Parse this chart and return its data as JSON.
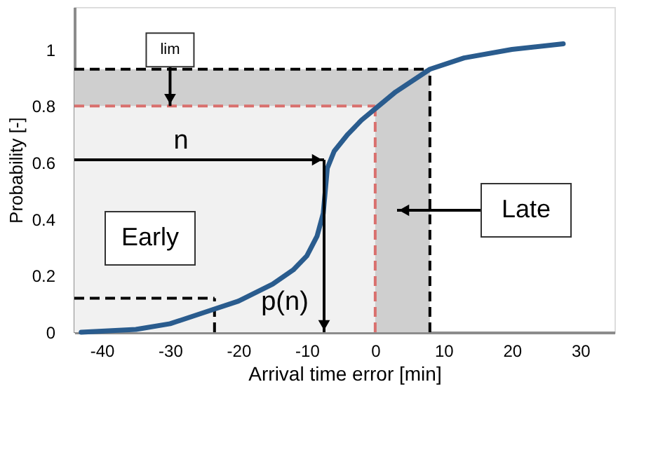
{
  "chart_data": {
    "type": "line",
    "xlabel": "Arrival time error [min]",
    "ylabel": "Probability [-]",
    "xlim": [
      -44,
      35
    ],
    "ylim": [
      0,
      1.15
    ],
    "xticks": [
      {
        "value": -40,
        "label": "-40"
      },
      {
        "value": -30,
        "label": "-30"
      },
      {
        "value": -20,
        "label": "-20"
      },
      {
        "value": -10,
        "label": "-10"
      },
      0,
      10,
      20,
      30
    ],
    "yticks": [
      0,
      0.2,
      0.4,
      0.6,
      0.8,
      1
    ],
    "grid": false,
    "series": [
      {
        "color": "#2a5c8e",
        "x": [
          -43,
          -35,
          -30,
          -25,
          -20,
          -15,
          -12,
          -10,
          -8.5,
          -7.6,
          -7.3,
          -7,
          -6,
          -4,
          -2,
          0,
          3,
          8,
          13,
          20,
          27.5
        ],
        "values": [
          0,
          0.01,
          0.03,
          0.07,
          0.11,
          0.17,
          0.22,
          0.27,
          0.34,
          0.42,
          0.5,
          0.58,
          0.64,
          0.7,
          0.75,
          0.79,
          0.85,
          0.93,
          0.97,
          1.0,
          1.02
        ]
      }
    ],
    "bands": [
      {
        "axis": "x",
        "from": -44,
        "to": 0,
        "color": "#f1f1f1"
      },
      {
        "axis": "x",
        "from": 0,
        "to": 8,
        "color": "#cfcfcf"
      },
      {
        "axis": "y",
        "from": 0.8,
        "to": 0.93,
        "color": "#cfcfcf"
      }
    ],
    "ref_lines": [
      {
        "axis": "y",
        "value": 0.93,
        "color": "#000000",
        "line_style": "dashed"
      },
      {
        "axis": "x",
        "value": 8,
        "color": "#000000",
        "line_style": "dashed"
      },
      {
        "axis": "y",
        "value": 0.8,
        "color": "#d9706e",
        "line_style": "dashed"
      },
      {
        "axis": "x",
        "value": 0,
        "color": "#d9706e",
        "line_style": "dashed"
      },
      {
        "axis": "y",
        "value": 0.12,
        "color": "#000000",
        "line_style": "dashed"
      },
      {
        "axis": "x",
        "value": -23.5,
        "color": "#000000",
        "line_style": "dashed"
      }
    ],
    "annotations": [
      {
        "text": "lim",
        "x": -30,
        "y": 0.8
      },
      "n",
      "p(n)",
      "Late",
      "Early"
    ]
  }
}
